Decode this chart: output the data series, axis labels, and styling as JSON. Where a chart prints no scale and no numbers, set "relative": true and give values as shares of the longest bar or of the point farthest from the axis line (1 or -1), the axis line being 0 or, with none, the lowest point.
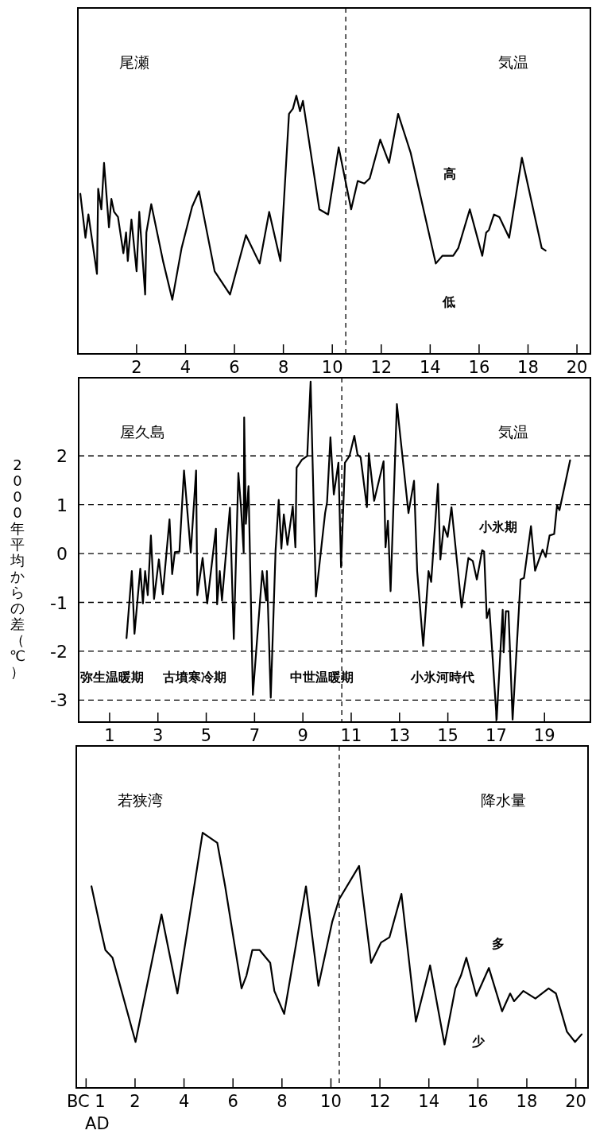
{
  "chart_data": [
    {
      "type": "line",
      "title": "尾瀬",
      "subtitle": "気温",
      "relative": true,
      "color": "#000000",
      "line_style": "solid",
      "x": [
        -0.3,
        -0.09,
        0.03,
        0.38,
        0.43,
        0.56,
        0.67,
        0.87,
        0.97,
        1.08,
        1.24,
        1.46,
        1.57,
        1.64,
        1.79,
        2.0,
        2.11,
        2.35,
        2.4,
        2.6,
        3.08,
        3.46,
        3.84,
        4.27,
        4.55,
        5.19,
        5.82,
        6.47,
        7.03,
        7.42,
        7.88,
        8.23,
        8.39,
        8.53,
        8.68,
        8.8,
        9.47,
        9.83,
        10.26,
        10.77,
        11.04,
        11.31,
        11.53,
        11.96,
        12.32,
        12.69,
        13.2,
        14.23,
        14.5,
        14.94,
        15.15,
        15.62,
        16.13,
        16.29,
        16.4,
        16.61,
        16.83,
        17.23,
        17.75,
        18.56,
        18.72
      ],
      "values": [
        0.62,
        0.45,
        0.54,
        0.31,
        0.64,
        0.56,
        0.74,
        0.49,
        0.6,
        0.55,
        0.53,
        0.39,
        0.47,
        0.36,
        0.52,
        0.32,
        0.55,
        0.23,
        0.47,
        0.58,
        0.36,
        0.21,
        0.41,
        0.57,
        0.63,
        0.32,
        0.23,
        0.46,
        0.35,
        0.55,
        0.36,
        0.93,
        0.95,
        1.0,
        0.94,
        0.98,
        0.56,
        0.54,
        0.8,
        0.56,
        0.67,
        0.66,
        0.68,
        0.83,
        0.74,
        0.93,
        0.78,
        0.35,
        0.38,
        0.38,
        0.41,
        0.56,
        0.38,
        0.47,
        0.48,
        0.54,
        0.53,
        0.45,
        0.76,
        0.41,
        0.4
      ],
      "xlim": [
        -0.4,
        20.55
      ],
      "xticks": [
        2,
        4,
        6,
        8,
        10,
        12,
        14,
        16,
        18,
        20
      ],
      "ref_lines": [
        {
          "axis": "x",
          "value": 10.55,
          "line_style": "dashed"
        }
      ],
      "annotations": [
        "高",
        "低"
      ]
    },
    {
      "type": "line",
      "title": "屋久島",
      "subtitle": "気温",
      "ylabel": "2000年平均からの差（℃）",
      "color": "#000000",
      "line_style": "solid",
      "grid": "y",
      "x": [
        1.7,
        1.92,
        2.03,
        2.27,
        2.38,
        2.47,
        2.58,
        2.71,
        2.84,
        3.04,
        3.2,
        3.48,
        3.59,
        3.7,
        3.89,
        4.08,
        4.36,
        4.58,
        4.63,
        4.85,
        5.04,
        5.4,
        5.45,
        5.56,
        5.65,
        5.98,
        6.14,
        6.33,
        6.44,
        6.55,
        6.57,
        6.64,
        6.75,
        6.93,
        7.32,
        7.48,
        7.51,
        7.67,
        7.87,
        8.0,
        8.11,
        8.21,
        8.36,
        8.58,
        8.69,
        8.74,
        8.96,
        9.18,
        9.32,
        9.54,
        9.92,
        10.0,
        10.14,
        10.28,
        10.47,
        10.58,
        10.74,
        10.93,
        11.13,
        11.26,
        11.39,
        11.65,
        11.73,
        11.95,
        12.34,
        12.42,
        12.52,
        12.63,
        12.89,
        13.37,
        13.6,
        13.73,
        13.98,
        14.2,
        14.31,
        14.59,
        14.69,
        14.83,
        14.99,
        15.15,
        15.57,
        15.85,
        16.03,
        16.2,
        16.42,
        16.5,
        16.61,
        16.72,
        17.02,
        17.27,
        17.31,
        17.4,
        17.51,
        17.68,
        18.01,
        18.15,
        18.44,
        18.61,
        18.92,
        19.05,
        19.21,
        19.4,
        19.52,
        19.62,
        20.06
      ],
      "values": [
        -1.73,
        -0.36,
        -1.64,
        -0.31,
        -1.02,
        -0.36,
        -0.85,
        0.37,
        -0.93,
        -0.12,
        -0.83,
        0.7,
        -0.42,
        0.03,
        0.04,
        1.7,
        0.02,
        1.7,
        -0.85,
        -0.09,
        -1.02,
        0.51,
        -1.04,
        -0.36,
        -0.96,
        0.94,
        -1.75,
        1.65,
        0.94,
        0.02,
        2.79,
        0.61,
        1.38,
        -2.89,
        -0.36,
        -0.96,
        -0.36,
        -2.95,
        0.07,
        1.1,
        0.1,
        0.8,
        0.18,
        0.97,
        0.13,
        1.76,
        1.92,
        2.0,
        3.52,
        -0.88,
        0.83,
        1.05,
        2.38,
        1.21,
        1.86,
        -0.28,
        1.86,
        2.0,
        2.41,
        2.03,
        1.97,
        0.95,
        2.05,
        1.08,
        1.89,
        0.13,
        0.67,
        -0.77,
        3.06,
        0.83,
        1.49,
        -0.36,
        -1.89,
        -0.36,
        -0.58,
        1.43,
        -0.12,
        0.56,
        0.34,
        0.95,
        -1.1,
        -0.09,
        -0.15,
        -0.53,
        0.07,
        0.04,
        -1.32,
        -1.13,
        -3.4,
        -1.15,
        -2.02,
        -1.18,
        -1.18,
        -3.4,
        -0.53,
        -0.5,
        0.56,
        -0.35,
        0.08,
        -0.07,
        0.37,
        0.4,
        0.99,
        0.89,
        1.91
      ],
      "xlim": [
        -0.28,
        20.9
      ],
      "xticks": [
        1,
        3,
        5,
        7,
        9,
        11,
        13,
        15,
        17,
        19
      ],
      "ylim": [
        -3.45,
        3.6
      ],
      "yticks": [
        -3,
        -2,
        -1,
        0,
        1,
        2
      ],
      "ref_lines": [
        {
          "axis": "x",
          "value": 10.61,
          "line_style": "dashed"
        }
      ],
      "annotations": [
        "弥生温暖期",
        "古墳寒冷期",
        "中世温暖期",
        "小氷河時代",
        "小氷期"
      ]
    },
    {
      "type": "line",
      "title": "若狭湾",
      "subtitle": "降水量",
      "xlabel": "AD",
      "relative": true,
      "color": "#000000",
      "line_style": "solid",
      "x": [
        0.22,
        0.6,
        0.79,
        1.08,
        2.02,
        3.08,
        3.73,
        4.76,
        5.36,
        5.68,
        6.35,
        6.55,
        6.79,
        7.09,
        7.52,
        7.69,
        8.09,
        8.98,
        9.49,
        10.05,
        10.34,
        11.15,
        11.64,
        12.05,
        12.39,
        12.88,
        13.47,
        14.05,
        14.64,
        15.08,
        15.31,
        15.53,
        15.94,
        16.45,
        16.99,
        17.32,
        17.48,
        17.86,
        18.35,
        18.89,
        19.19,
        19.64,
        19.97,
        20.24
      ],
      "values": [
        0.79,
        0.62,
        0.54,
        0.51,
        0.18,
        0.68,
        0.37,
        1.0,
        0.96,
        0.79,
        0.39,
        0.44,
        0.54,
        0.54,
        0.49,
        0.38,
        0.29,
        0.79,
        0.4,
        0.65,
        0.74,
        0.87,
        0.49,
        0.57,
        0.59,
        0.76,
        0.26,
        0.48,
        0.17,
        0.39,
        0.44,
        0.51,
        0.36,
        0.47,
        0.3,
        0.37,
        0.34,
        0.38,
        0.35,
        0.39,
        0.37,
        0.22,
        0.18,
        0.21
      ],
      "xlim": [
        -0.4,
        20.5
      ],
      "xticks": [
        {
          "value": 0,
          "label": "BC 1"
        },
        2,
        4,
        6,
        8,
        10,
        12,
        14,
        16,
        18,
        20
      ],
      "ref_lines": [
        {
          "axis": "x",
          "value": 10.34,
          "line_style": "dashed"
        }
      ],
      "annotations": [
        "多",
        "少"
      ]
    }
  ]
}
